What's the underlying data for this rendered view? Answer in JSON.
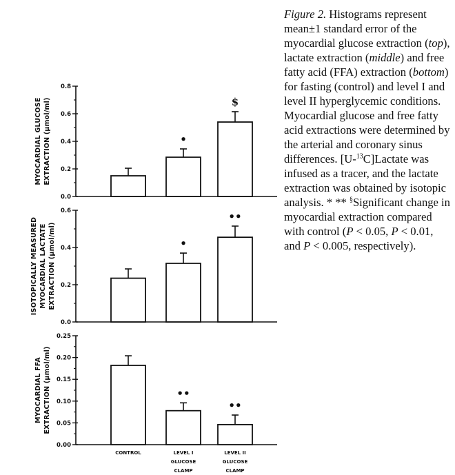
{
  "chart_data": [
    {
      "type": "bar",
      "categories": [
        "CONTROL",
        "LEVEL I GLUCOSE CLAMP",
        "LEVEL II GLUCOSE CLAMP"
      ],
      "ylabel_lines": [
        "MYOCARDIAL  GLUCOSE",
        "EXTRACTION  (μmol/ml)"
      ],
      "yticks": [
        "0.0",
        "0.2",
        "0.4",
        "0.6",
        "0.8"
      ],
      "ylim": [
        0,
        0.8
      ],
      "values": [
        0.15,
        0.285,
        0.54
      ],
      "errors": [
        0.055,
        0.06,
        0.075
      ],
      "significance": [
        "",
        "•",
        "$"
      ]
    },
    {
      "type": "bar",
      "categories": [
        "CONTROL",
        "LEVEL I GLUCOSE CLAMP",
        "LEVEL II GLUCOSE CLAMP"
      ],
      "ylabel_lines": [
        "ISOTOPICALLY  MEASURED",
        "MYOCARDIAL  LACTATE",
        "EXTRACTION  (μmol/ml)"
      ],
      "yticks": [
        "0.0",
        "0.2",
        "0.4",
        "0.6"
      ],
      "ylim": [
        0,
        0.6
      ],
      "values": [
        0.235,
        0.315,
        0.455
      ],
      "errors": [
        0.05,
        0.055,
        0.06
      ],
      "significance": [
        "",
        "•",
        "••"
      ]
    },
    {
      "type": "bar",
      "categories": [
        "CONTROL",
        "LEVEL I GLUCOSE CLAMP",
        "LEVEL II GLUCOSE CLAMP"
      ],
      "ylabel_lines": [
        "MYOCARDIAL  FFA",
        "EXTRACTION  (μmol/ml)"
      ],
      "yticks": [
        "0.00",
        "0.05",
        "0.10",
        "0.15",
        "0.20",
        "0.25"
      ],
      "ylim": [
        0,
        0.25
      ],
      "values": [
        0.182,
        0.078,
        0.046
      ],
      "errors": [
        0.022,
        0.018,
        0.022
      ],
      "significance": [
        "",
        "••",
        "••"
      ]
    }
  ],
  "x_axis_labels": [
    [
      "CONTROL"
    ],
    [
      "LEVEL  I",
      "GLUCOSE",
      "CLAMP"
    ],
    [
      "LEVEL  II",
      "GLUCOSE",
      "CLAMP"
    ]
  ],
  "caption": {
    "figure_label": "Figure 2.",
    "seg1": " Histograms represent mean±1 standard error of the myocardial glucose extraction (",
    "top": "top",
    "seg2": "), lactate extraction (",
    "middle": "middle",
    "seg3": ") and free fatty acid (FFA) extraction (",
    "bottom": "bottom",
    "seg4": ") for fasting (control) and level I and level II hyperglycemic conditions. Myocardial glucose and free fatty acid extractions were determined by the arterial and coronary sinus differences. [U-",
    "sup13": "13",
    "seg5": "C]Lactate was infused as a tracer, and the lactate extraction was obtained by isotopic analysis. * ** ",
    "sup_s": "§",
    "seg6": "Significant change in myocardial extraction compared with control (",
    "p1": "P",
    "seg7": " < 0.05, ",
    "p2": "P",
    "seg8": " < 0.01, and ",
    "p3": "P",
    "seg9": " < 0.005, respectively)."
  }
}
